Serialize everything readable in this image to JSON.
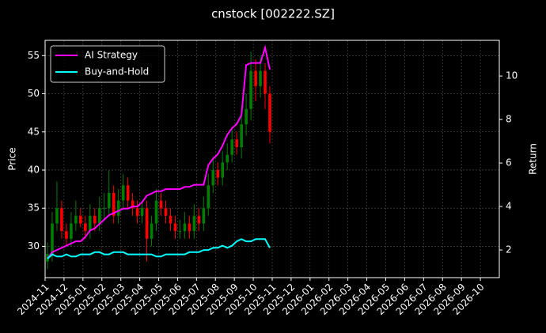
{
  "chart_data": {
    "type": "candlestick",
    "title": "cnstock [002222.SZ]",
    "ylabel": "Price",
    "y2label": "Return",
    "x": [
      "2024-11",
      "2024-11",
      "2024-11",
      "2024-11",
      "2024-12",
      "2024-12",
      "2024-12",
      "2024-12",
      "2025-01",
      "2025-01",
      "2025-01",
      "2025-01",
      "2025-02",
      "2025-02",
      "2025-02",
      "2025-02",
      "2025-03",
      "2025-03",
      "2025-03",
      "2025-03",
      "2025-04",
      "2025-04",
      "2025-04",
      "2025-04",
      "2025-05",
      "2025-05",
      "2025-05",
      "2025-05",
      "2025-06",
      "2025-06",
      "2025-06",
      "2025-06",
      "2025-07",
      "2025-07",
      "2025-07",
      "2025-07",
      "2025-08",
      "2025-08",
      "2025-08",
      "2025-08",
      "2025-09",
      "2025-09",
      "2025-09",
      "2025-09",
      "2025-10",
      "2025-10",
      "2025-10",
      "2025-10"
    ],
    "open": [
      28,
      29,
      33,
      35,
      32,
      31,
      33,
      34,
      33,
      32,
      34,
      33,
      35,
      35,
      37,
      34,
      36,
      38,
      36,
      35,
      34,
      35,
      31,
      33,
      36,
      35,
      34,
      33,
      32,
      32,
      33,
      32,
      34,
      33,
      35,
      38,
      40,
      39,
      41,
      42,
      44,
      43,
      46,
      48,
      53,
      51,
      53,
      50
    ],
    "high": [
      30.5,
      34.5,
      38.5,
      36,
      33,
      34.5,
      36,
      35,
      34,
      35.5,
      35,
      36.5,
      37,
      40,
      38,
      37.5,
      39.5,
      39,
      37,
      36,
      36,
      36,
      34,
      37.5,
      37,
      36,
      35,
      34,
      33.5,
      34.5,
      34,
      35.5,
      35,
      36.5,
      39.5,
      41.5,
      41,
      42.5,
      43.5,
      45.5,
      45,
      47.5,
      50,
      55.5,
      54.5,
      55,
      54,
      51
    ],
    "low": [
      27,
      28,
      32,
      31,
      30,
      30,
      32,
      32.5,
      31,
      31,
      32,
      32,
      33.5,
      34,
      33,
      33,
      35,
      35,
      34,
      33,
      33,
      28,
      30,
      32,
      34,
      33,
      32,
      31,
      31,
      31,
      31,
      31,
      32,
      32,
      34,
      37,
      38,
      38,
      40,
      41,
      42,
      41.5,
      44.5,
      46.5,
      49,
      49.5,
      48,
      43.5
    ],
    "close": [
      29,
      33,
      35,
      32,
      31,
      33,
      34,
      33,
      32,
      34,
      33,
      35,
      35,
      37,
      34,
      36,
      38,
      36,
      35,
      34,
      35,
      31,
      33,
      36,
      35,
      34,
      33,
      32,
      32,
      33,
      32,
      34,
      33,
      35,
      38,
      40,
      39,
      41,
      42,
      44,
      43,
      46,
      48,
      53,
      51,
      53,
      50,
      45
    ],
    "up_color": "#008000",
    "down_color": "#ff0000",
    "series": [
      {
        "name": "AI Strategy",
        "color": "#ff00ff",
        "axis": "y2",
        "values": [
          1.6,
          1.9,
          2.0,
          2.1,
          2.2,
          2.3,
          2.4,
          2.4,
          2.6,
          2.9,
          3.0,
          3.2,
          3.4,
          3.6,
          3.7,
          3.8,
          3.9,
          3.9,
          4.0,
          4.0,
          4.2,
          4.5,
          4.6,
          4.7,
          4.7,
          4.8,
          4.8,
          4.8,
          4.8,
          4.9,
          4.9,
          5.0,
          5.0,
          5.0,
          5.9,
          6.2,
          6.4,
          6.8,
          7.3,
          7.6,
          7.8,
          8.2,
          10.5,
          10.6,
          10.6,
          10.6,
          11.3,
          10.3
        ]
      },
      {
        "name": "Buy-and-Hold",
        "color": "#00ffff",
        "axis": "y2",
        "values": [
          1.6,
          1.8,
          1.7,
          1.7,
          1.8,
          1.7,
          1.7,
          1.8,
          1.8,
          1.8,
          1.9,
          1.9,
          1.8,
          1.8,
          1.9,
          1.9,
          1.9,
          1.8,
          1.8,
          1.8,
          1.8,
          1.8,
          1.8,
          1.7,
          1.7,
          1.8,
          1.8,
          1.8,
          1.8,
          1.8,
          1.9,
          1.9,
          1.9,
          2.0,
          2.0,
          2.1,
          2.1,
          2.2,
          2.1,
          2.2,
          2.4,
          2.5,
          2.4,
          2.4,
          2.5,
          2.5,
          2.5,
          2.1
        ]
      }
    ],
    "xlim": [
      "2024-11",
      "2026-11"
    ],
    "xticks": [
      "2024-11",
      "2024-12",
      "2025-01",
      "2025-02",
      "2025-03",
      "2025-04",
      "2025-05",
      "2025-06",
      "2025-07",
      "2025-08",
      "2025-09",
      "2025-10",
      "2025-11",
      "2025-12",
      "2026-01",
      "2026-02",
      "2026-03",
      "2026-04",
      "2026-05",
      "2026-06",
      "2026-07",
      "2026-08",
      "2026-09",
      "2026-10"
    ],
    "ylim": [
      25.9,
      57.0
    ],
    "yticks": [
      30,
      35,
      40,
      45,
      50,
      55
    ],
    "y2lim": [
      0.73,
      11.64
    ],
    "y2ticks": [
      2,
      4,
      6,
      8,
      10
    ],
    "grid": true,
    "legend": "upper left"
  }
}
